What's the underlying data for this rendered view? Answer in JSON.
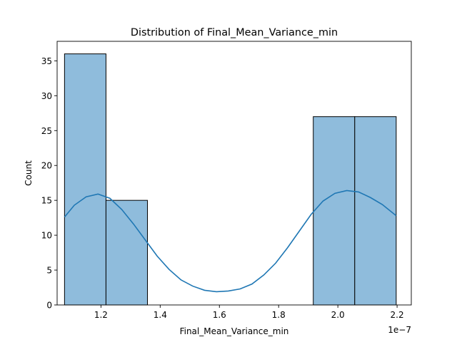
{
  "chart_data": {
    "type": "bar",
    "title": "Distribution of Final_Mean_Variance_min",
    "xlabel": "Final_Mean_Variance_min",
    "ylabel": "Count",
    "x_offset_label": "1e−7",
    "xlim": [
      1.052,
      2.248
    ],
    "ylim": [
      0,
      37.8
    ],
    "xticks": [
      1.2,
      1.4,
      1.6,
      1.8,
      2.0,
      2.2
    ],
    "xtick_labels": [
      "1.2",
      "1.4",
      "1.6",
      "1.8",
      "2.0",
      "2.2"
    ],
    "yticks": [
      0,
      5,
      10,
      15,
      20,
      25,
      30,
      35
    ],
    "ytick_labels": [
      "0",
      "5",
      "10",
      "15",
      "20",
      "25",
      "30",
      "35"
    ],
    "grid": false,
    "bars": [
      {
        "x0": 1.077,
        "x1": 1.217,
        "count": 36
      },
      {
        "x0": 1.217,
        "x1": 1.357,
        "count": 15
      },
      {
        "x0": 1.357,
        "x1": 1.497,
        "count": 0
      },
      {
        "x0": 1.497,
        "x1": 1.637,
        "count": 0
      },
      {
        "x0": 1.637,
        "x1": 1.777,
        "count": 0
      },
      {
        "x0": 1.777,
        "x1": 1.917,
        "count": 0
      },
      {
        "x0": 1.917,
        "x1": 2.057,
        "count": 27
      },
      {
        "x0": 2.057,
        "x1": 2.197,
        "count": 27
      }
    ],
    "kde": [
      [
        1.077,
        12.6
      ],
      [
        1.11,
        14.3
      ],
      [
        1.15,
        15.5
      ],
      [
        1.19,
        15.9
      ],
      [
        1.23,
        15.3
      ],
      [
        1.27,
        13.7
      ],
      [
        1.31,
        11.6
      ],
      [
        1.35,
        9.3
      ],
      [
        1.39,
        7.0
      ],
      [
        1.43,
        5.1
      ],
      [
        1.47,
        3.6
      ],
      [
        1.51,
        2.7
      ],
      [
        1.55,
        2.1
      ],
      [
        1.59,
        1.9
      ],
      [
        1.63,
        2.0
      ],
      [
        1.67,
        2.3
      ],
      [
        1.71,
        3.0
      ],
      [
        1.75,
        4.3
      ],
      [
        1.79,
        6.0
      ],
      [
        1.83,
        8.2
      ],
      [
        1.87,
        10.6
      ],
      [
        1.91,
        13.0
      ],
      [
        1.95,
        14.9
      ],
      [
        1.99,
        16.0
      ],
      [
        2.03,
        16.4
      ],
      [
        2.07,
        16.2
      ],
      [
        2.11,
        15.4
      ],
      [
        2.15,
        14.4
      ],
      [
        2.197,
        12.8
      ]
    ],
    "colors": {
      "bar_fill": "#8fbcdc",
      "bar_edge": "#000000",
      "kde_line": "#1f77b4"
    }
  }
}
